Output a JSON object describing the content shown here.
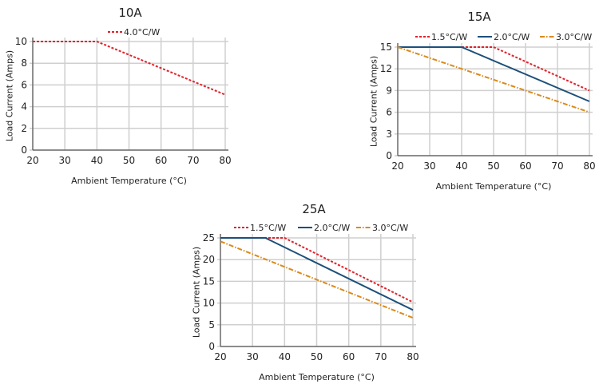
{
  "colors": {
    "red": "#e3202a",
    "blue": "#1d4f7a",
    "orange": "#d98a1c",
    "grid": "#cfcfcf",
    "axis": "#555555"
  },
  "chart_data": [
    {
      "type": "line",
      "title": "10A",
      "xlabel": "Ambient Temperature (°C)",
      "ylabel": "Load Current (Amps)",
      "xlim": [
        20,
        80
      ],
      "ylim": [
        0,
        10
      ],
      "xticks": [
        20,
        30,
        40,
        50,
        60,
        70,
        80
      ],
      "yticks": [
        0,
        2,
        4,
        6,
        8,
        10
      ],
      "grid": true,
      "legend": "top",
      "series": [
        {
          "name": "4.0°C/W",
          "style": "dotted",
          "color": "#e3202a",
          "x": [
            20,
            40,
            80
          ],
          "y": [
            10,
            10,
            5.1
          ]
        }
      ]
    },
    {
      "type": "line",
      "title": "15A",
      "xlabel": "Ambient Temperature (°C)",
      "ylabel": "Load Current (Amps)",
      "xlim": [
        20,
        80
      ],
      "ylim": [
        0,
        15
      ],
      "xticks": [
        20,
        30,
        40,
        50,
        60,
        70,
        80
      ],
      "yticks": [
        0,
        3,
        6,
        9,
        12,
        15
      ],
      "grid": true,
      "legend": "top",
      "series": [
        {
          "name": "1.5°C/W",
          "style": "dotted",
          "color": "#e3202a",
          "x": [
            20,
            50,
            80
          ],
          "y": [
            15,
            15,
            9
          ]
        },
        {
          "name": "2.0°C/W",
          "style": "solid",
          "color": "#1d4f7a",
          "x": [
            20,
            40,
            80
          ],
          "y": [
            15,
            15,
            7.5
          ]
        },
        {
          "name": "3.0°C/W",
          "style": "dashdot",
          "color": "#d98a1c",
          "x": [
            20,
            80
          ],
          "y": [
            15,
            6
          ]
        }
      ]
    },
    {
      "type": "line",
      "title": "25A",
      "xlabel": "Ambient Temperature (°C)",
      "ylabel": "Load Current (Amps)",
      "xlim": [
        20,
        80
      ],
      "ylim": [
        0,
        25
      ],
      "xticks": [
        20,
        30,
        40,
        50,
        60,
        70,
        80
      ],
      "yticks": [
        0,
        5,
        10,
        15,
        20,
        25
      ],
      "grid": true,
      "legend": "top",
      "series": [
        {
          "name": "1.5°C/W",
          "style": "dotted",
          "color": "#e3202a",
          "x": [
            20,
            40,
            80
          ],
          "y": [
            25,
            25,
            10.2
          ]
        },
        {
          "name": "2.0°C/W",
          "style": "solid",
          "color": "#1d4f7a",
          "x": [
            20,
            34,
            80
          ],
          "y": [
            25,
            25,
            8.4
          ]
        },
        {
          "name": "3.0°C/W",
          "style": "dashdot",
          "color": "#d98a1c",
          "x": [
            20,
            80
          ],
          "y": [
            24.2,
            6.6
          ]
        }
      ]
    }
  ]
}
